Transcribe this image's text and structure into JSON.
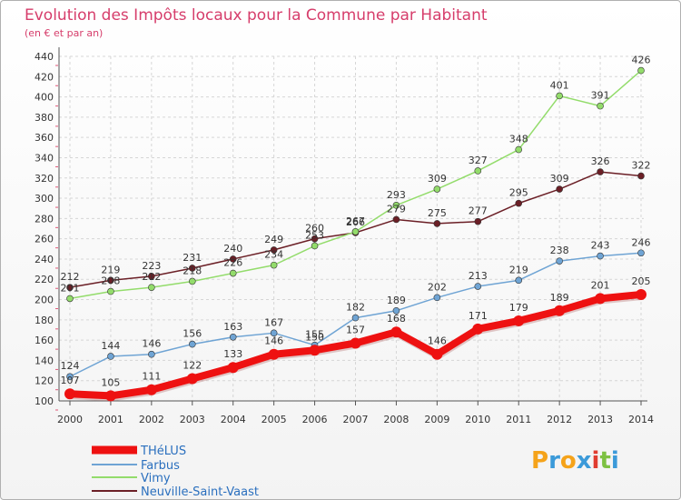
{
  "chart_data": {
    "type": "line",
    "title": "Evolution des Impôts locaux pour la Commune par Habitant",
    "subtitle": "(en € et par an)",
    "x": [
      "2000",
      "2001",
      "2002",
      "2003",
      "2004",
      "2005",
      "2006",
      "2007",
      "2008",
      "2009",
      "2010",
      "2011",
      "2012",
      "2013",
      "2014"
    ],
    "ylim": [
      100,
      440
    ],
    "yticks": [
      100,
      120,
      140,
      160,
      180,
      200,
      220,
      240,
      260,
      280,
      300,
      320,
      340,
      360,
      380,
      400,
      420,
      440
    ],
    "grid": true,
    "legend_position": "bottom-left",
    "series": [
      {
        "name": "Neuville-Saint-Vaast",
        "color": "#6b1f26",
        "values": [
          212,
          219,
          223,
          231,
          240,
          249,
          260,
          266,
          279,
          275,
          277,
          295,
          309,
          326,
          322
        ]
      },
      {
        "name": "Vimy",
        "color": "#93dc6b",
        "values": [
          201,
          208,
          212,
          218,
          226,
          234,
          253,
          267,
          293,
          309,
          327,
          348,
          401,
          391,
          426
        ]
      },
      {
        "name": "Farbus",
        "color": "#6fa4d4",
        "values": [
          124,
          144,
          146,
          156,
          163,
          167,
          155,
          182,
          189,
          202,
          213,
          219,
          238,
          243,
          246
        ]
      },
      {
        "name": "THéLUS",
        "color": "#ee1111",
        "values": [
          107,
          105,
          111,
          122,
          133,
          146,
          150,
          157,
          168,
          146,
          171,
          179,
          189,
          201,
          205
        ]
      }
    ],
    "legend": [
      "THéLUS",
      "Farbus",
      "Vimy",
      "Neuville-Saint-Vaast"
    ]
  },
  "brand": {
    "text": "Proxiti"
  }
}
